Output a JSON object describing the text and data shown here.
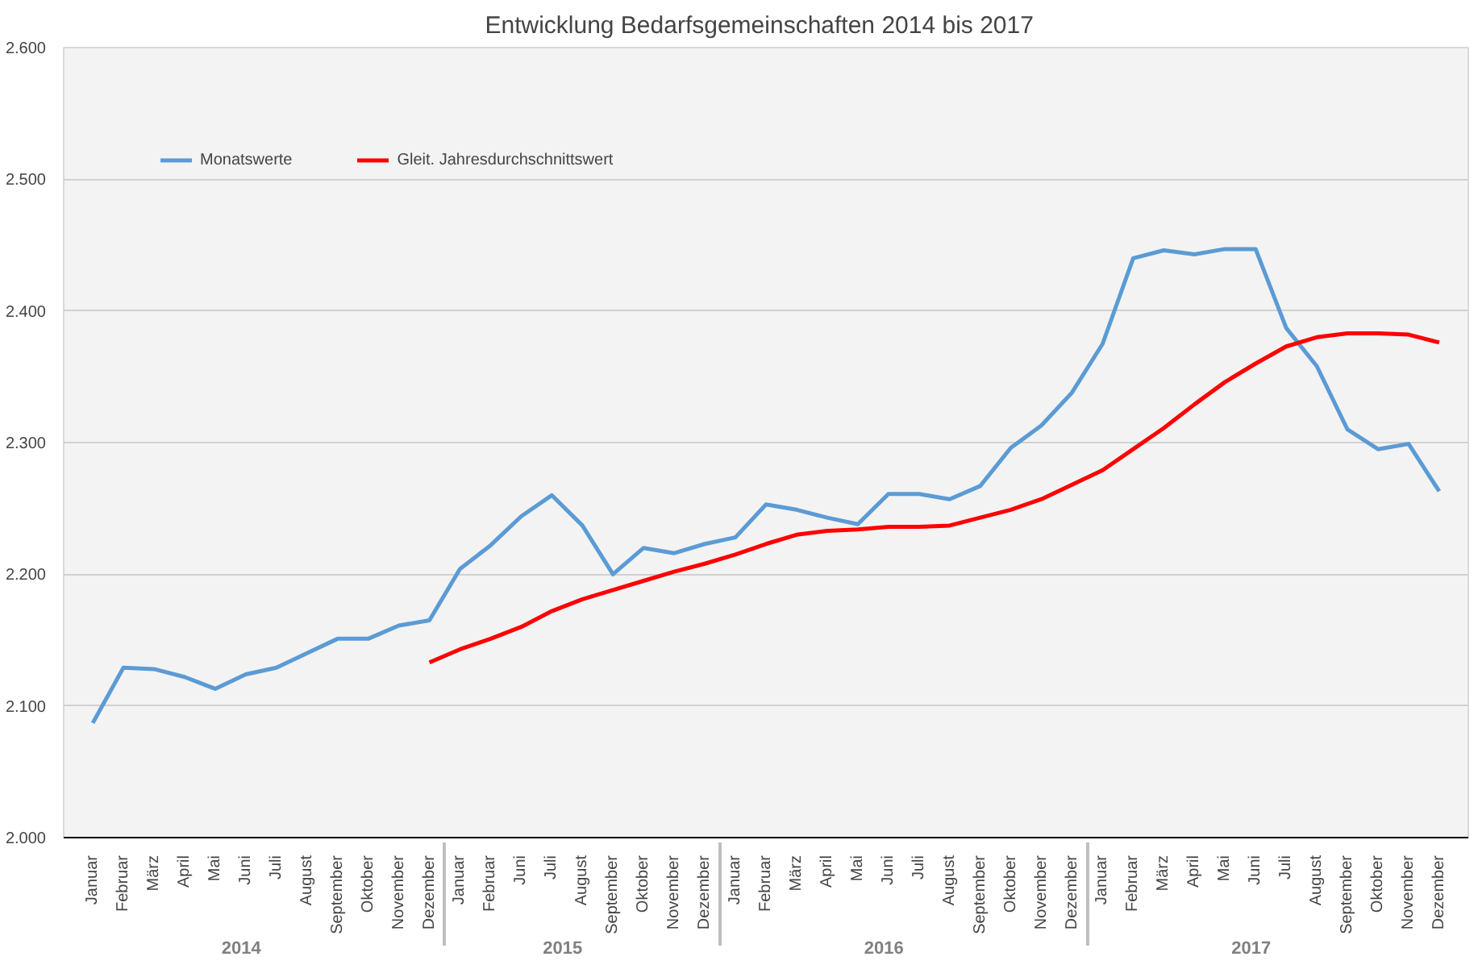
{
  "chart_data": {
    "type": "line",
    "title": "Entwicklung  Bedarfsgemeinschaften  2014 bis 2017",
    "categories": [
      "Januar",
      "Februar",
      "März",
      "April",
      "Mai",
      "Juni",
      "Juli",
      "August",
      "September",
      "Oktober",
      "November",
      "Dezember",
      "Januar",
      "Februar",
      "Juni",
      "Juli",
      "August",
      "September",
      "Oktober",
      "November",
      "Dezember",
      "Januar",
      "Februar",
      "März",
      "April",
      "Mai",
      "Juni",
      "Juli",
      "August",
      "September",
      "Oktober",
      "November",
      "Dezember",
      "Januar",
      "Februar",
      "März",
      "April",
      "Mai",
      "Juni",
      "Juli",
      "August",
      "September",
      "Oktober",
      "November",
      "Dezember"
    ],
    "annotations": [
      "2014",
      "2015",
      "2016",
      "2017"
    ],
    "series": [
      {
        "name": "Monatswerte",
        "color": "#5b9bd5",
        "values": [
          2087,
          2129,
          2128,
          2122,
          2113,
          2124,
          2129,
          2140,
          2151,
          2151,
          2161,
          2165,
          2204,
          2222,
          2244,
          2260,
          2237,
          2200,
          2220,
          2216,
          2223,
          2228,
          2253,
          2249,
          2243,
          2238,
          2261,
          2261,
          2257,
          2267,
          2296,
          2313,
          2338,
          2375,
          2440,
          2446,
          2443,
          2447,
          2447,
          2387,
          2358,
          2310,
          2295,
          2299,
          2263
        ]
      },
      {
        "name": "Gleit. Jahresdurchschnittswert",
        "color": "#ff0000",
        "values": [
          null,
          null,
          null,
          null,
          null,
          null,
          null,
          null,
          null,
          null,
          null,
          2133,
          2143,
          2151,
          2160,
          2172,
          2181,
          2188,
          2195,
          2202,
          2208,
          2215,
          2223,
          2230,
          2233,
          2234,
          2236,
          2236,
          2237,
          2243,
          2249,
          2257,
          2268,
          2279,
          2295,
          2311,
          2329,
          2346,
          2360,
          2373,
          2380,
          2383,
          2383,
          2382,
          2376
        ]
      }
    ],
    "ylim": [
      2000,
      2600
    ],
    "yticks": [
      {
        "value": 2000,
        "label": "2.000"
      },
      {
        "value": 2100,
        "label": "2.100"
      },
      {
        "value": 2200,
        "label": "2.200"
      },
      {
        "value": 2300,
        "label": "2.300"
      },
      {
        "value": 2400,
        "label": "2.400"
      },
      {
        "value": 2500,
        "label": "2.500"
      },
      {
        "value": 2600,
        "label": "2.600"
      }
    ],
    "grid": "y",
    "legend": "top left",
    "marker": "none",
    "line_style": "solid"
  }
}
